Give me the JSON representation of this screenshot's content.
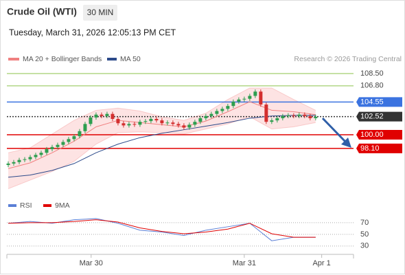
{
  "header": {
    "title": "Crude Oil (WTI)",
    "timeframe": "30 MIN",
    "timestamp": "Tuesday, March 31, 2026 12:05:13 PM CET",
    "credit": "Research © 2026 Trading Central"
  },
  "chart_data": [
    {
      "type": "candlestick",
      "up_color": "#2e9e4f",
      "down_color": "#d32f2f",
      "xlim": [
        -0.25,
        62.9
      ],
      "ylim": [
        91.5,
        109.65
      ],
      "open": [
        95.8,
        96.0,
        96.2,
        96.5,
        96.6,
        96.9,
        97.2,
        97.5,
        98.0,
        98.3,
        98.6,
        99.0,
        99.4,
        99.8,
        100.5,
        101.5,
        102.4,
        102.8,
        102.6,
        102.9,
        102.2,
        101.6,
        101.3,
        101.5,
        101.4,
        101.8,
        101.9,
        102.2,
        102.0,
        101.6,
        101.7,
        101.5,
        101.3,
        101.0,
        101.4,
        101.8,
        102.3,
        102.6,
        102.9,
        103.3,
        103.6,
        104.0,
        104.6,
        104.9,
        105.0,
        105.4,
        106.0,
        104.2,
        101.8,
        102.0,
        102.3,
        102.6,
        102.7,
        102.6,
        102.8,
        102.6,
        102.3
      ],
      "high": [
        96.3,
        96.5,
        96.8,
        96.9,
        97.2,
        97.5,
        97.8,
        98.3,
        98.6,
        98.9,
        99.3,
        99.7,
        100.1,
        100.8,
        101.8,
        102.7,
        103.1,
        103.1,
        103.2,
        103.2,
        102.5,
        101.9,
        101.8,
        101.8,
        102.1,
        102.2,
        102.5,
        102.5,
        102.3,
        102.0,
        102.0,
        101.8,
        101.6,
        101.7,
        102.1,
        102.6,
        102.9,
        103.2,
        103.6,
        103.9,
        104.3,
        104.9,
        105.2,
        105.3,
        105.7,
        106.3,
        106.3,
        104.5,
        102.3,
        102.6,
        102.9,
        103.0,
        103.0,
        103.1,
        103.1,
        102.9,
        102.8
      ],
      "low": [
        95.5,
        95.7,
        95.9,
        96.2,
        96.3,
        96.6,
        96.9,
        97.2,
        97.7,
        98.0,
        98.3,
        98.7,
        99.1,
        99.5,
        100.2,
        101.2,
        102.1,
        102.3,
        102.3,
        101.9,
        101.3,
        101.0,
        101.0,
        101.1,
        101.1,
        101.5,
        101.6,
        101.7,
        101.3,
        101.3,
        101.2,
        101.0,
        100.7,
        100.7,
        101.1,
        101.5,
        102.0,
        102.3,
        102.6,
        103.0,
        103.3,
        103.7,
        104.3,
        104.6,
        104.7,
        105.1,
        103.9,
        101.5,
        101.5,
        101.7,
        102.0,
        102.3,
        102.3,
        102.3,
        102.3,
        102.0,
        102.0
      ],
      "close": [
        96.0,
        96.2,
        96.5,
        96.6,
        96.9,
        97.2,
        97.5,
        98.0,
        98.3,
        98.6,
        99.0,
        99.4,
        99.8,
        100.5,
        101.5,
        102.4,
        102.8,
        102.6,
        102.9,
        102.2,
        101.6,
        101.3,
        101.5,
        101.4,
        101.8,
        101.9,
        102.2,
        102.0,
        101.6,
        101.7,
        101.5,
        101.3,
        101.0,
        101.4,
        101.8,
        102.3,
        102.6,
        102.9,
        103.3,
        103.6,
        104.0,
        104.6,
        104.9,
        105.0,
        105.4,
        106.0,
        104.2,
        101.8,
        102.0,
        102.3,
        102.6,
        102.7,
        102.6,
        102.8,
        102.6,
        102.3,
        102.5
      ],
      "series": [
        {
          "name": "MA 20 + Bollinger Bands",
          "color": "#f08080",
          "band_color": "#fde3e3",
          "x": [
            0,
            4,
            8,
            12,
            16,
            20,
            24,
            28,
            32,
            36,
            40,
            44,
            48,
            52,
            56
          ],
          "values": [
            95.3,
            96.1,
            97.5,
            99.1,
            101.1,
            102.0,
            101.7,
            101.4,
            101.1,
            101.9,
            103.2,
            104.6,
            103.4,
            103.2,
            102.8
          ],
          "upper": [
            97.5,
            98.2,
            100.1,
            102.0,
            103.4,
            103.7,
            103.3,
            102.5,
            102.0,
            103.0,
            104.9,
            106.5,
            106.5,
            104.9,
            103.4
          ],
          "lower": [
            92.5,
            93.7,
            94.9,
            96.3,
            98.7,
            100.3,
            100.4,
            100.3,
            100.1,
            100.8,
            101.5,
            102.5,
            100.8,
            101.1,
            101.7
          ]
        },
        {
          "name": "MA 50",
          "color": "#2c4a8a",
          "x": [
            0,
            4,
            8,
            12,
            16,
            20,
            24,
            28,
            32,
            36,
            40,
            44,
            48,
            52,
            56
          ],
          "values": [
            94.1,
            94.4,
            95.05,
            96.0,
            97.5,
            98.7,
            99.6,
            100.2,
            100.7,
            101.2,
            101.7,
            102.3,
            102.6,
            102.7,
            102.7
          ]
        }
      ],
      "levels": [
        {
          "value": 108.5,
          "label": "108.50",
          "color": "#8bc34a",
          "label_box": false,
          "line": "solid"
        },
        {
          "value": 106.8,
          "label": "106.80",
          "color": "#8bc34a",
          "label_box": false,
          "line": "solid"
        },
        {
          "value": 104.55,
          "color": "#3b73e0",
          "label_box": true,
          "line": "solid"
        },
        {
          "value": 102.52,
          "color": "#333333",
          "label_box": true,
          "line": "dotted"
        },
        {
          "value": 100.0,
          "label": "100.00",
          "color": "#e00000",
          "label_box": true,
          "line": "solid"
        },
        {
          "value": 98.1,
          "label": "98.10",
          "color": "#e00000",
          "label_box": true,
          "line": "solid"
        }
      ]
    },
    {
      "type": "line",
      "xlim": [
        -0.25,
        62.9
      ],
      "ylim": [
        18,
        84
      ],
      "yticks": [
        70,
        50,
        30
      ],
      "xticks": [
        {
          "value": 15.1,
          "label": "Mar 30"
        },
        {
          "value": 43,
          "label": "Mar 31"
        },
        {
          "value": 57.1,
          "label": "Apr 1"
        }
      ],
      "series": [
        {
          "name": "RSI",
          "color": "#5b7fd6",
          "x": [
            0,
            4,
            8,
            12,
            16,
            20,
            24,
            28,
            32,
            36,
            40,
            44,
            48,
            52,
            56
          ],
          "values": [
            69,
            72,
            69,
            75,
            77,
            69,
            57,
            54,
            48,
            57,
            63,
            69,
            39,
            45,
            45
          ]
        },
        {
          "name": "9MA",
          "color": "#e00000",
          "x": [
            0,
            4,
            8,
            12,
            16,
            20,
            24,
            28,
            32,
            36,
            40,
            44,
            48,
            52,
            56
          ],
          "values": [
            69,
            70,
            70,
            72,
            75,
            71,
            61,
            55,
            51,
            54,
            59,
            69,
            51,
            45,
            45
          ]
        }
      ]
    }
  ]
}
